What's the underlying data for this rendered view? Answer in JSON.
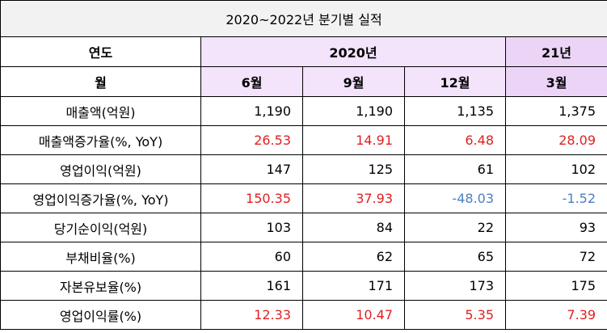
{
  "title": "2020~2022년  분기별  실적",
  "header": {
    "year_label": "연도",
    "year_2020": "2020년",
    "year_21": "21년",
    "month_label": "월",
    "months": [
      "6월",
      "9월",
      "12월",
      "3월"
    ]
  },
  "rows": [
    {
      "label": "매출액(억원)",
      "values": [
        "1,190",
        "1,190",
        "1,135",
        "1,375"
      ],
      "tone": [
        "blk",
        "blk",
        "blk",
        "blk"
      ]
    },
    {
      "label": "매출액증가율(%, YoY)",
      "values": [
        "26.53",
        "14.91",
        "6.48",
        "28.09"
      ],
      "tone": [
        "pos",
        "pos",
        "pos",
        "pos"
      ]
    },
    {
      "label": "영업이익(억원)",
      "values": [
        "147",
        "125",
        "61",
        "102"
      ],
      "tone": [
        "blk",
        "blk",
        "blk",
        "blk"
      ]
    },
    {
      "label": "영업이익증가율(%, YoY)",
      "values": [
        "150.35",
        "37.93",
        "-48.03",
        "-1.52"
      ],
      "tone": [
        "pos",
        "pos",
        "neg",
        "neg"
      ]
    },
    {
      "label": "당기순이익(억원)",
      "values": [
        "103",
        "84",
        "22",
        "93"
      ],
      "tone": [
        "blk",
        "blk",
        "blk",
        "blk"
      ]
    },
    {
      "label": "부채비율(%)",
      "values": [
        "60",
        "62",
        "65",
        "72"
      ],
      "tone": [
        "blk",
        "blk",
        "blk",
        "blk"
      ]
    },
    {
      "label": "자본유보율(%)",
      "values": [
        "161",
        "171",
        "173",
        "175"
      ],
      "tone": [
        "blk",
        "blk",
        "blk",
        "blk"
      ]
    },
    {
      "label": "영업이익률(%)",
      "values": [
        "12.33",
        "10.47",
        "5.35",
        "7.39"
      ],
      "tone": [
        "pos",
        "pos",
        "pos",
        "pos"
      ]
    }
  ],
  "colors": {
    "positive": "#e02020",
    "negative": "#4a7fc2",
    "header_lavender": "#ecd4f7",
    "header_lavender_light": "#f3e3fb",
    "title_bg": "#f2f2f2"
  }
}
